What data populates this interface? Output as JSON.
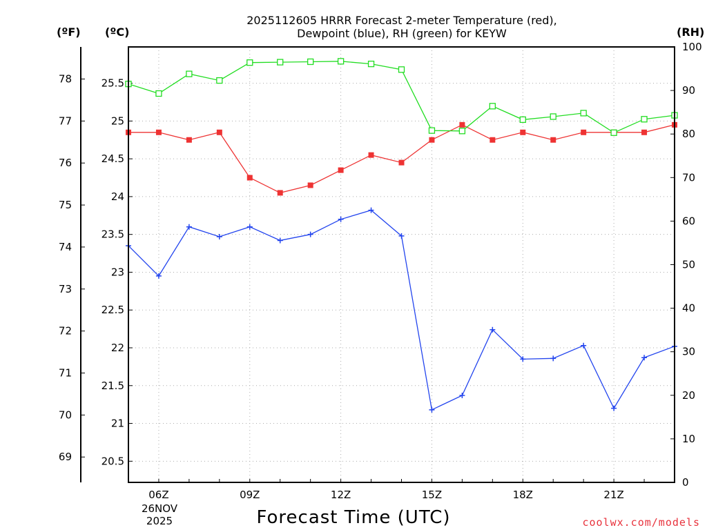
{
  "chart_data": {
    "type": "line",
    "title_line1": "2025112605 HRRR Forecast 2-meter Temperature (red),",
    "title_line2": "Dewpoint (blue), RH (green) for KEYW",
    "xlabel": "Forecast Time (UTC)",
    "credit": "coolwx.com/models",
    "unit_f": "(ºF)",
    "unit_c": "(ºC)",
    "unit_rh": "(RH)",
    "date_label_1": "26NOV",
    "date_label_2": "2025",
    "x_hours": [
      5,
      6,
      7,
      8,
      9,
      10,
      11,
      12,
      13,
      14,
      15,
      16,
      17,
      18,
      19,
      20,
      21,
      22,
      23
    ],
    "xlim": [
      5,
      23
    ],
    "x_ticks": [
      {
        "hour": 6,
        "label": "06Z"
      },
      {
        "hour": 9,
        "label": "09Z"
      },
      {
        "hour": 12,
        "label": "12Z"
      },
      {
        "hour": 15,
        "label": "15Z"
      },
      {
        "hour": 18,
        "label": "18Z"
      },
      {
        "hour": 21,
        "label": "21Z"
      }
    ],
    "celsius_axis": {
      "ylim": [
        20.22,
        25.98
      ],
      "ticks": [
        20.5,
        21,
        21.5,
        22,
        22.5,
        23,
        23.5,
        24,
        24.5,
        25,
        25.5
      ],
      "labels": [
        "20.5",
        "21",
        "21.5",
        "22",
        "22.5",
        "23",
        "23.5",
        "24",
        "24.5",
        "25",
        "25.5"
      ]
    },
    "fahrenheit_axis": {
      "ticks": [
        69,
        70,
        71,
        72,
        73,
        74,
        75,
        76,
        77,
        78
      ],
      "labels": [
        "69",
        "70",
        "71",
        "72",
        "73",
        "74",
        "75",
        "76",
        "77",
        "78"
      ]
    },
    "rh_axis": {
      "ylim": [
        0,
        100
      ],
      "ticks": [
        0,
        10,
        20,
        30,
        40,
        50,
        60,
        70,
        80,
        90,
        100
      ],
      "labels": [
        "0",
        "10",
        "20",
        "30",
        "40",
        "50",
        "60",
        "70",
        "80",
        "90",
        "100"
      ]
    },
    "series": [
      {
        "name": "Temperature",
        "axis": "celsius",
        "color": "#ee3333",
        "marker": "filled-square",
        "values": [
          24.85,
          24.85,
          24.75,
          24.85,
          24.25,
          24.05,
          24.15,
          24.35,
          24.55,
          24.45,
          24.75,
          24.95,
          24.75,
          24.85,
          24.75,
          24.85,
          24.85,
          24.85,
          24.95
        ]
      },
      {
        "name": "Dewpoint",
        "axis": "celsius",
        "color": "#2244ee",
        "marker": "plus",
        "values": [
          23.35,
          22.95,
          23.6,
          23.47,
          23.6,
          23.42,
          23.5,
          23.7,
          23.82,
          23.48,
          21.18,
          21.37,
          22.24,
          21.85,
          21.86,
          22.03,
          21.2,
          21.87,
          22.02
        ]
      },
      {
        "name": "RH",
        "axis": "rh",
        "color": "#22dd22",
        "marker": "open-square",
        "values": [
          91.5,
          89.3,
          93.8,
          92.3,
          96.4,
          96.5,
          96.6,
          96.7,
          96.1,
          94.8,
          80.8,
          80.7,
          86.4,
          83.3,
          84,
          84.8,
          80.3,
          83.4,
          84.3
        ]
      }
    ]
  }
}
